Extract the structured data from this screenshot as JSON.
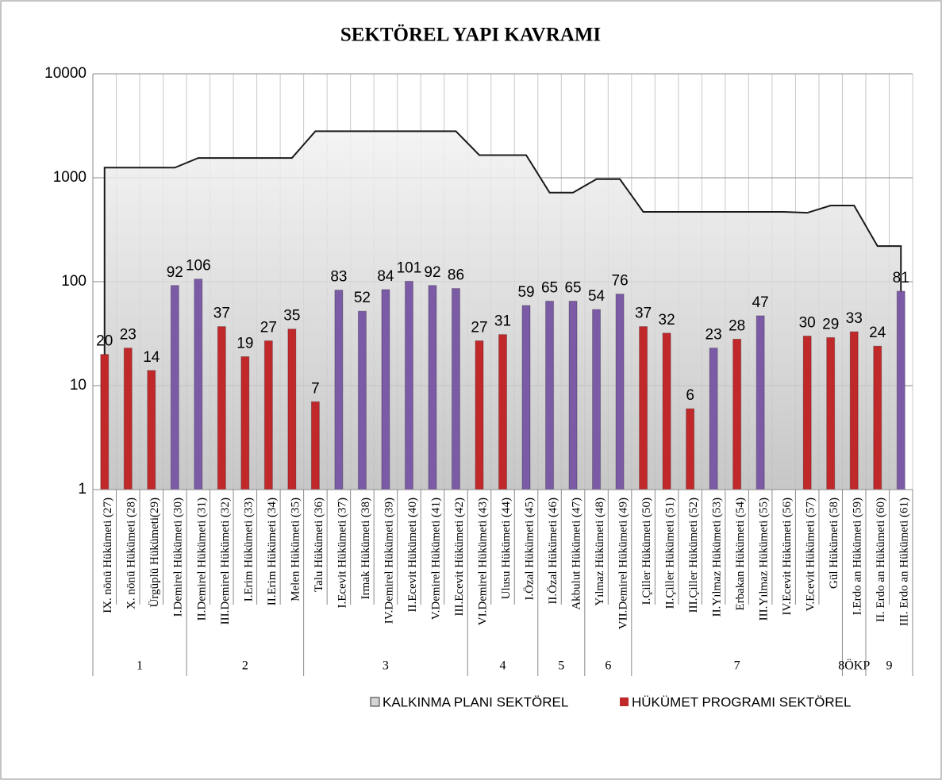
{
  "chart_data": {
    "type": "bar",
    "title": "SEKTÖREL YAPI KAVRAMI",
    "categories": [
      "IX. nönü Hükümeti (27)",
      "X. nönü Hükümeti (28)",
      "Ürgüplü Hükümeti(29)",
      "I.Demirel Hükümeti (30)",
      "II.Demirel Hükümeti (31)",
      "III.Demirel Hükümeti (32)",
      "I.Erim Hükümeti (33)",
      "II.Erim Hükümeti (34)",
      "Melen Hükümeti (35)",
      "Talu Hükümeti (36)",
      "I.Ecevit Hükümeti (37)",
      "Irmak Hükümeti (38)",
      "IV.Demirel Hükümeti (39)",
      "II.Ecevit Hükümeti (40)",
      "V.Demirel Hükümeti (41)",
      "III.Ecevit Hükümeti (42)",
      "VI.Demirel Hükümeti (43)",
      "Ulusu Hükümeti (44)",
      "I.Özal Hükümeti (45)",
      "II.Özal Hükümeti (46)",
      "Akbulut Hükümeti (47)",
      "Yılmaz Hükümeti (48)",
      "VII.Demirel Hükümeti (49)",
      "I.Çiller Hükümeti (50)",
      "II.Çiller Hükümeti (51)",
      "III.Çiller Hükümeti (52)",
      "II.Yılmaz Hükümeti (53)",
      "Erbakan Hükümeti (54)",
      "III.Yılmaz Hükümeti (55)",
      "IV.Ecevit Hükümeti (56)",
      "V.Ecevit Hükümeti (57)",
      "Gül Hükümeti (58)",
      "I.Erdo an Hükümeti (59)",
      "II. Erdo an Hükümeti (60)",
      "III. Erdo an Hükümeti (61)"
    ],
    "groups": [
      "1",
      "1",
      "1",
      "1",
      "2",
      "2",
      "2",
      "2",
      "2",
      "3",
      "3",
      "3",
      "3",
      "3",
      "3",
      "3",
      "4",
      "4",
      "4",
      "5",
      "5",
      "6",
      "6",
      "7",
      "7",
      "7",
      "7",
      "7",
      "7",
      "7",
      "7",
      "7",
      "8ÖKP",
      "9",
      "9"
    ],
    "series": [
      {
        "name": "KALKINMA PLANI SEKTÖREL",
        "type": "area",
        "color": "#d4d4d4",
        "values": [
          1250,
          1250,
          1250,
          1250,
          1550,
          1550,
          1550,
          1550,
          1550,
          2800,
          2800,
          2800,
          2800,
          2800,
          2800,
          2800,
          1650,
          1650,
          1650,
          720,
          720,
          970,
          970,
          470,
          470,
          470,
          470,
          470,
          470,
          470,
          460,
          540,
          540,
          220,
          220
        ]
      },
      {
        "name": "HÜKÜMET PROGRAMI SEKTÖREL",
        "type": "bar",
        "color": "#c0282a",
        "values": [
          20,
          23,
          14,
          92,
          106,
          37,
          19,
          27,
          35,
          7,
          83,
          52,
          84,
          101,
          92,
          86,
          27,
          31,
          59,
          65,
          65,
          54,
          76,
          37,
          32,
          6,
          23,
          28,
          47,
          null,
          30,
          29,
          33,
          24,
          81
        ],
        "colors": [
          "#c0282a",
          "#c0282a",
          "#c0282a",
          "#7b5aa6",
          "#7b5aa6",
          "#c0282a",
          "#c0282a",
          "#c0282a",
          "#c0282a",
          "#c0282a",
          "#7b5aa6",
          "#7b5aa6",
          "#7b5aa6",
          "#7b5aa6",
          "#7b5aa6",
          "#7b5aa6",
          "#c0282a",
          "#c0282a",
          "#7b5aa6",
          "#7b5aa6",
          "#7b5aa6",
          "#7b5aa6",
          "#7b5aa6",
          "#c0282a",
          "#c0282a",
          "#c0282a",
          "#7b5aa6",
          "#c0282a",
          "#7b5aa6",
          "#c0282a",
          "#c0282a",
          "#c0282a",
          "#c0282a",
          "#c0282a",
          "#7b5aa6"
        ]
      }
    ],
    "log_scale": true,
    "ylim": [
      1,
      10000
    ],
    "yticks": [
      1,
      10,
      100,
      1000,
      10000
    ],
    "grid": true,
    "legend": "bottom"
  }
}
